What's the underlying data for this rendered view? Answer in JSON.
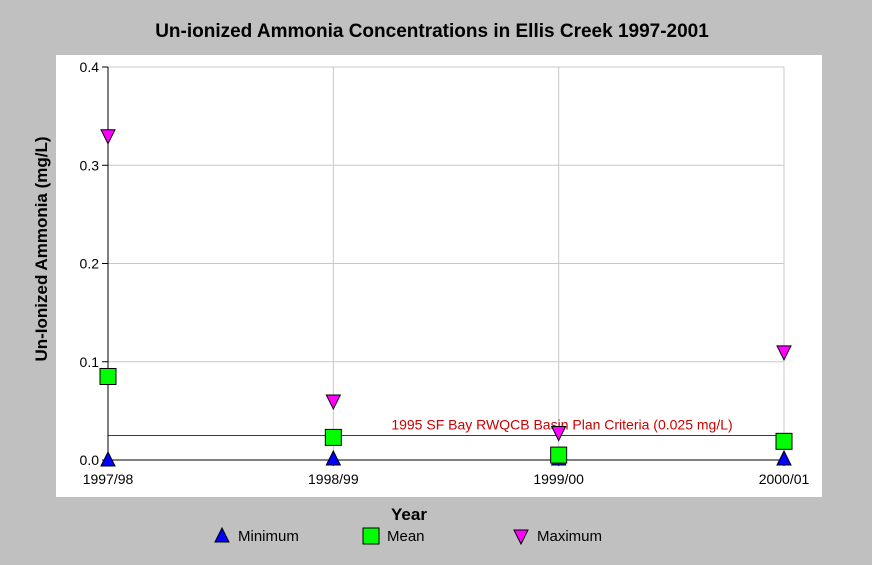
{
  "chart_data": {
    "type": "scatter",
    "title": "Un-ionized Ammonia Concentrations in Ellis Creek 1997-2001",
    "xlabel": "Year",
    "ylabel": "Un-Ionized Ammonia (mg/L)",
    "categories": [
      "1997/98",
      "1998/99",
      "1999/00",
      "2000/01"
    ],
    "ylim": [
      0,
      0.4
    ],
    "yticks": [
      "0.0",
      "0.1",
      "0.2",
      "0.3",
      "0.4"
    ],
    "ytick_values": [
      0,
      0.1,
      0.2,
      0.3,
      0.4
    ],
    "grid": true,
    "legend_position": "bottom",
    "series": [
      {
        "name": "Minimum",
        "marker": "triangle-up",
        "color": "#0000ff",
        "values": [
          0.0,
          0.001,
          0.001,
          0.001
        ]
      },
      {
        "name": "Mean",
        "marker": "square",
        "color": "#00ff00",
        "values": [
          0.085,
          0.023,
          0.005,
          0.019
        ]
      },
      {
        "name": "Maximum",
        "marker": "triangle-down",
        "color": "#ff00ff",
        "values": [
          0.33,
          0.06,
          0.028,
          0.11
        ]
      }
    ],
    "reference_line": {
      "value": 0.025,
      "label": "1995 SF Bay RWQCB Basin Plan Criteria (0.025 mg/L)",
      "color": "#cc0000"
    }
  }
}
